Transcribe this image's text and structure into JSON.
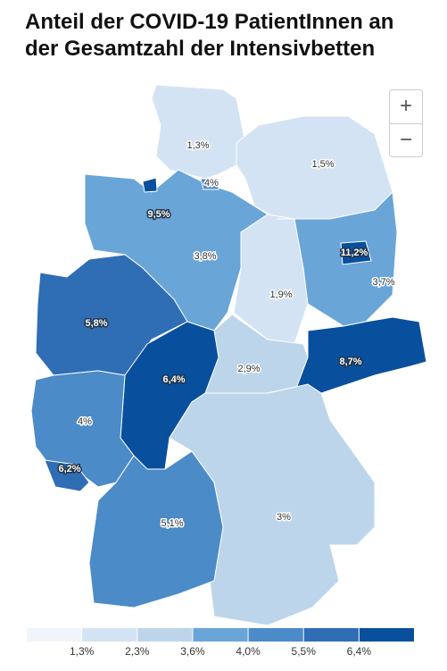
{
  "title": "Anteil der COVID-19 PatientInnen an der Gesamtzahl der Intensivbetten",
  "zoom": {
    "in": "+",
    "out": "−"
  },
  "regions": [
    {
      "label": "1,3%",
      "color": "#d3e3f3"
    },
    {
      "label": "1,5%",
      "color": "#d3e3f3"
    },
    {
      "label": "4%",
      "color": "#4b8bc8"
    },
    {
      "label": "9,5%",
      "color": "#08509e"
    },
    {
      "label": "3,8%",
      "color": "#6aa5d8"
    },
    {
      "label": "11,2%",
      "color": "#08509e"
    },
    {
      "label": "3,7%",
      "color": "#6aa5d8"
    },
    {
      "label": "1,9%",
      "color": "#d3e3f3"
    },
    {
      "label": "5,8%",
      "color": "#2f6db5"
    },
    {
      "label": "6,4%",
      "color": "#08509e"
    },
    {
      "label": "2,9%",
      "color": "#bdd5ea"
    },
    {
      "label": "8,7%",
      "color": "#08509e"
    },
    {
      "label": "4%",
      "color": "#4b8bc8"
    },
    {
      "label": "6,2%",
      "color": "#2f6db5"
    },
    {
      "label": "5,1%",
      "color": "#4b8bc8"
    },
    {
      "label": "3%",
      "color": "#bdd5ea"
    }
  ],
  "legend": {
    "colors": [
      "#f0f5fc",
      "#d3e3f3",
      "#bdd5ea",
      "#6aa5d8",
      "#4b8bc8",
      "#2f6db5",
      "#08509e"
    ],
    "labels": [
      "1,3%",
      "2,3%",
      "3,6%",
      "4,0%",
      "5,5%",
      "6,4%"
    ]
  }
}
